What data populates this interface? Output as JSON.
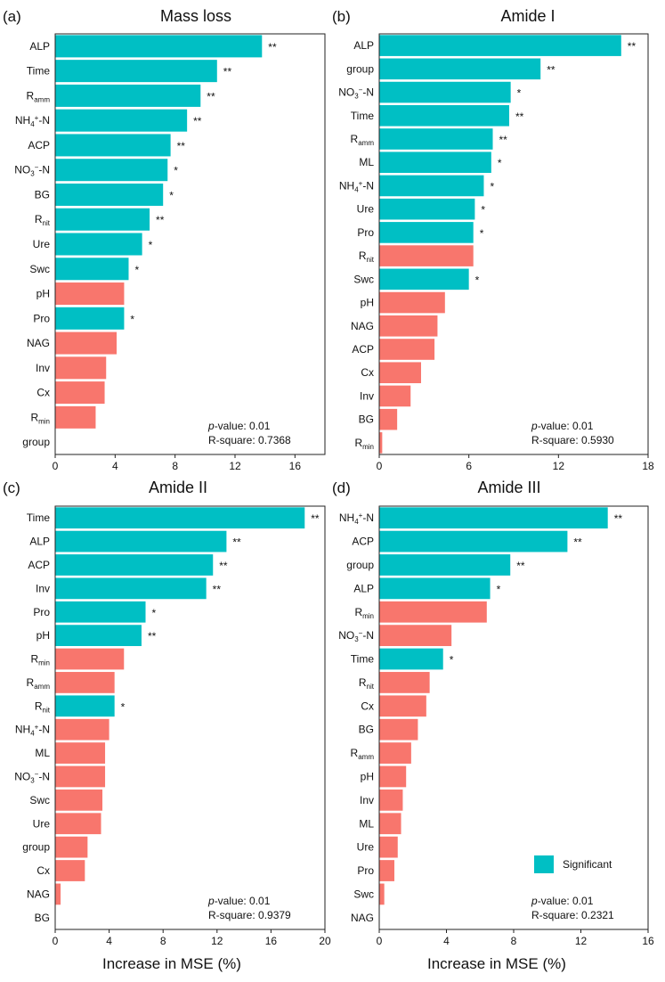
{
  "colors": {
    "significant": "#00BFC4",
    "nonsignificant": "#F8766D"
  },
  "xlabel": "Increase in MSE (%)",
  "legend": {
    "label": "Significant"
  },
  "chart_data": [
    {
      "type": "bar",
      "orientation": "horizontal",
      "panel": "(a)",
      "title": "Mass loss",
      "categories": [
        [
          {
            "t": "ALP"
          }
        ],
        [
          {
            "t": "Time"
          }
        ],
        [
          {
            "t": "R"
          },
          {
            "t": "amm",
            "sub": true
          }
        ],
        [
          {
            "t": "NH"
          },
          {
            "t": "4",
            "sub": true
          },
          {
            "t": "+",
            "sup": true
          },
          {
            "t": "-N"
          }
        ],
        [
          {
            "t": "ACP"
          }
        ],
        [
          {
            "t": "NO"
          },
          {
            "t": "3",
            "sub": true
          },
          {
            "t": "−",
            "sup": true
          },
          {
            "t": "-N"
          }
        ],
        [
          {
            "t": "BG"
          }
        ],
        [
          {
            "t": "R"
          },
          {
            "t": "nit",
            "sub": true
          }
        ],
        [
          {
            "t": "Ure"
          }
        ],
        [
          {
            "t": "Swc"
          }
        ],
        [
          {
            "t": "pH"
          }
        ],
        [
          {
            "t": "Pro"
          }
        ],
        [
          {
            "t": "NAG"
          }
        ],
        [
          {
            "t": "Inv"
          }
        ],
        [
          {
            "t": "Cx"
          }
        ],
        [
          {
            "t": "R"
          },
          {
            "t": "min",
            "sub": true
          }
        ],
        [
          {
            "t": "group"
          }
        ]
      ],
      "values": [
        13.8,
        10.8,
        9.7,
        8.8,
        7.7,
        7.5,
        7.2,
        6.3,
        5.8,
        4.9,
        4.6,
        4.6,
        4.1,
        3.4,
        3.3,
        2.7,
        0
      ],
      "significant": [
        true,
        true,
        true,
        true,
        true,
        true,
        true,
        true,
        true,
        true,
        false,
        true,
        false,
        false,
        false,
        false,
        false
      ],
      "stars": [
        "**",
        "**",
        "**",
        "**",
        "**",
        "*",
        "*",
        "**",
        "*",
        "*",
        "",
        "*",
        "",
        "",
        "",
        "",
        ""
      ],
      "xlim": [
        0,
        18
      ],
      "xticks": [
        0,
        4,
        8,
        12,
        16
      ],
      "p_value": "0.01",
      "r_square": "0.7368"
    },
    {
      "type": "bar",
      "orientation": "horizontal",
      "panel": "(b)",
      "title": "Amide I",
      "categories": [
        [
          {
            "t": "ALP"
          }
        ],
        [
          {
            "t": "group"
          }
        ],
        [
          {
            "t": "NO"
          },
          {
            "t": "3",
            "sub": true
          },
          {
            "t": "−",
            "sup": true
          },
          {
            "t": "-N"
          }
        ],
        [
          {
            "t": "Time"
          }
        ],
        [
          {
            "t": "R"
          },
          {
            "t": "amm",
            "sub": true
          }
        ],
        [
          {
            "t": "ML"
          }
        ],
        [
          {
            "t": "NH"
          },
          {
            "t": "4",
            "sub": true
          },
          {
            "t": "+",
            "sup": true
          },
          {
            "t": "-N"
          }
        ],
        [
          {
            "t": "Ure"
          }
        ],
        [
          {
            "t": "Pro"
          }
        ],
        [
          {
            "t": "R"
          },
          {
            "t": "nit",
            "sub": true
          }
        ],
        [
          {
            "t": "Swc"
          }
        ],
        [
          {
            "t": "pH"
          }
        ],
        [
          {
            "t": "NAG"
          }
        ],
        [
          {
            "t": "ACP"
          }
        ],
        [
          {
            "t": "Cx"
          }
        ],
        [
          {
            "t": "Inv"
          }
        ],
        [
          {
            "t": "BG"
          }
        ],
        [
          {
            "t": "R"
          },
          {
            "t": "min",
            "sub": true
          }
        ]
      ],
      "values": [
        16.2,
        10.8,
        8.8,
        8.7,
        7.6,
        7.5,
        7.0,
        6.4,
        6.3,
        6.3,
        6.0,
        4.4,
        3.9,
        3.7,
        2.8,
        2.1,
        1.2,
        0.2
      ],
      "significant": [
        true,
        true,
        true,
        true,
        true,
        true,
        true,
        true,
        true,
        false,
        true,
        false,
        false,
        false,
        false,
        false,
        false,
        false
      ],
      "stars": [
        "**",
        "**",
        "*",
        "**",
        "**",
        "*",
        "*",
        "*",
        "*",
        "",
        "*",
        "",
        "",
        "",
        "",
        "",
        "",
        ""
      ],
      "xlim": [
        0,
        18
      ],
      "xticks": [
        0,
        6,
        12,
        18
      ],
      "p_value": "0.01",
      "r_square": "0.5930"
    },
    {
      "type": "bar",
      "orientation": "horizontal",
      "panel": "(c)",
      "title": "Amide II",
      "categories": [
        [
          {
            "t": "Time"
          }
        ],
        [
          {
            "t": "ALP"
          }
        ],
        [
          {
            "t": "ACP"
          }
        ],
        [
          {
            "t": "Inv"
          }
        ],
        [
          {
            "t": "Pro"
          }
        ],
        [
          {
            "t": "pH"
          }
        ],
        [
          {
            "t": "R"
          },
          {
            "t": "min",
            "sub": true
          }
        ],
        [
          {
            "t": "R"
          },
          {
            "t": "amm",
            "sub": true
          }
        ],
        [
          {
            "t": "R"
          },
          {
            "t": "nit",
            "sub": true
          }
        ],
        [
          {
            "t": "NH"
          },
          {
            "t": "4",
            "sub": true
          },
          {
            "t": "+",
            "sup": true
          },
          {
            "t": "-N"
          }
        ],
        [
          {
            "t": "ML"
          }
        ],
        [
          {
            "t": "NO"
          },
          {
            "t": "3",
            "sub": true
          },
          {
            "t": "−",
            "sup": true
          },
          {
            "t": "-N"
          }
        ],
        [
          {
            "t": "Swc"
          }
        ],
        [
          {
            "t": "Ure"
          }
        ],
        [
          {
            "t": "group"
          }
        ],
        [
          {
            "t": "Cx"
          }
        ],
        [
          {
            "t": "NAG"
          }
        ],
        [
          {
            "t": "BG"
          }
        ]
      ],
      "values": [
        18.5,
        12.7,
        11.7,
        11.2,
        6.7,
        6.4,
        5.1,
        4.4,
        4.4,
        4.0,
        3.7,
        3.7,
        3.5,
        3.4,
        2.4,
        2.2,
        0.4,
        0
      ],
      "significant": [
        true,
        true,
        true,
        true,
        true,
        true,
        false,
        false,
        true,
        false,
        false,
        false,
        false,
        false,
        false,
        false,
        false,
        false
      ],
      "stars": [
        "**",
        "**",
        "**",
        "**",
        "*",
        "**",
        "",
        "",
        "*",
        "",
        "",
        "",
        "",
        "",
        "",
        "",
        "",
        ""
      ],
      "xlim": [
        0,
        20
      ],
      "xticks": [
        0,
        4,
        8,
        12,
        16,
        20
      ],
      "p_value": "0.01",
      "r_square": "0.9379"
    },
    {
      "type": "bar",
      "orientation": "horizontal",
      "panel": "(d)",
      "title": "Amide III",
      "categories": [
        [
          {
            "t": "NH"
          },
          {
            "t": "4",
            "sub": true
          },
          {
            "t": "+",
            "sup": true
          },
          {
            "t": "-N"
          }
        ],
        [
          {
            "t": "ACP"
          }
        ],
        [
          {
            "t": "group"
          }
        ],
        [
          {
            "t": "ALP"
          }
        ],
        [
          {
            "t": "R"
          },
          {
            "t": "min",
            "sub": true
          }
        ],
        [
          {
            "t": "NO"
          },
          {
            "t": "3",
            "sub": true
          },
          {
            "t": "−",
            "sup": true
          },
          {
            "t": "-N"
          }
        ],
        [
          {
            "t": "Time"
          }
        ],
        [
          {
            "t": "R"
          },
          {
            "t": "nit",
            "sub": true
          }
        ],
        [
          {
            "t": "Cx"
          }
        ],
        [
          {
            "t": "BG"
          }
        ],
        [
          {
            "t": "R"
          },
          {
            "t": "amm",
            "sub": true
          }
        ],
        [
          {
            "t": "pH"
          }
        ],
        [
          {
            "t": "Inv"
          }
        ],
        [
          {
            "t": "ML"
          }
        ],
        [
          {
            "t": "Ure"
          }
        ],
        [
          {
            "t": "Pro"
          }
        ],
        [
          {
            "t": "Swc"
          }
        ],
        [
          {
            "t": "NAG"
          }
        ]
      ],
      "values": [
        13.6,
        11.2,
        7.8,
        6.6,
        6.4,
        4.3,
        3.8,
        3.0,
        2.8,
        2.3,
        1.9,
        1.6,
        1.4,
        1.3,
        1.1,
        0.9,
        0.3,
        0
      ],
      "significant": [
        true,
        true,
        true,
        true,
        false,
        false,
        true,
        false,
        false,
        false,
        false,
        false,
        false,
        false,
        false,
        false,
        false,
        false
      ],
      "stars": [
        "**",
        "**",
        "**",
        "*",
        "",
        "",
        "*",
        "",
        "",
        "",
        "",
        "",
        "",
        "",
        "",
        "",
        "",
        ""
      ],
      "xlim": [
        0,
        16
      ],
      "xticks": [
        0,
        4,
        8,
        12,
        16
      ],
      "p_value": "0.01",
      "r_square": "0.2321"
    }
  ]
}
